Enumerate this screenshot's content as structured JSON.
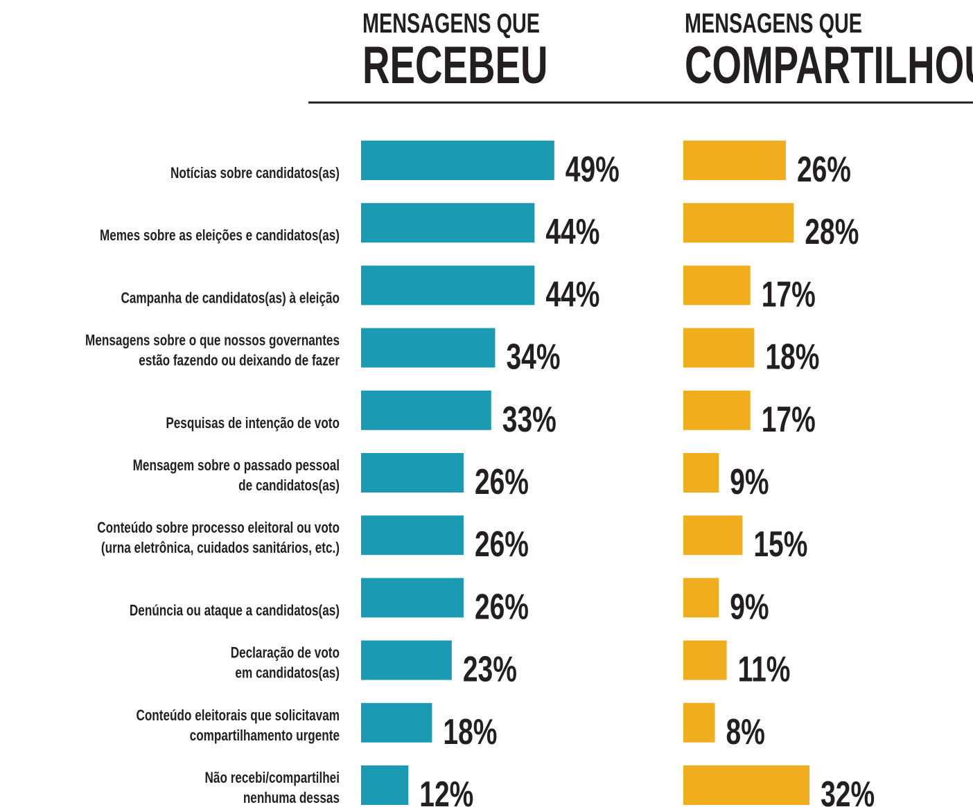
{
  "chart_data": [
    {
      "type": "barh",
      "subtitle": "MENSAGENS QUE",
      "title": "RECEBEU",
      "color": "#1a9bb3",
      "xlim": [
        0,
        100
      ],
      "categories": [
        [
          "Notícias sobre candidatos(as)"
        ],
        [
          "Memes sobre as eleições e candidatos(as)"
        ],
        [
          "Campanha de candidatos(as) à eleição"
        ],
        [
          "Mensagens sobre o que nossos governantes",
          "estão fazendo ou deixando de fazer"
        ],
        [
          "Pesquisas de intenção de voto"
        ],
        [
          "Mensagem sobre o passado pessoal",
          "de candidatos(as)"
        ],
        [
          "Conteúdo sobre processo eleitoral ou voto",
          "(urna eletrônica, cuidados sanitários, etc.)"
        ],
        [
          "Denúncia ou ataque a candidatos(as)"
        ],
        [
          "Declaração de voto",
          "em candidatos(as)"
        ],
        [
          "Conteúdo eleitorais que solicitavam",
          "compartilhamento urgente"
        ],
        [
          "Não recebi/compartilhei",
          "nenhuma dessas"
        ]
      ],
      "values": [
        49,
        44,
        44,
        34,
        33,
        26,
        26,
        26,
        23,
        18,
        12
      ],
      "value_labels": [
        "49%",
        "44%",
        "44%",
        "34%",
        "33%",
        "26%",
        "26%",
        "26%",
        "23%",
        "18%",
        "12%"
      ]
    },
    {
      "type": "barh",
      "subtitle": "MENSAGENS QUE",
      "title": "COMPARTILHOU",
      "color": "#f0ae1e",
      "xlim": [
        0,
        100
      ],
      "values": [
        26,
        28,
        17,
        18,
        17,
        9,
        15,
        9,
        11,
        8,
        32
      ],
      "value_labels": [
        "26%",
        "28%",
        "17%",
        "18%",
        "17%",
        "9%",
        "15%",
        "9%",
        "11%",
        "8%",
        "32%"
      ]
    }
  ]
}
